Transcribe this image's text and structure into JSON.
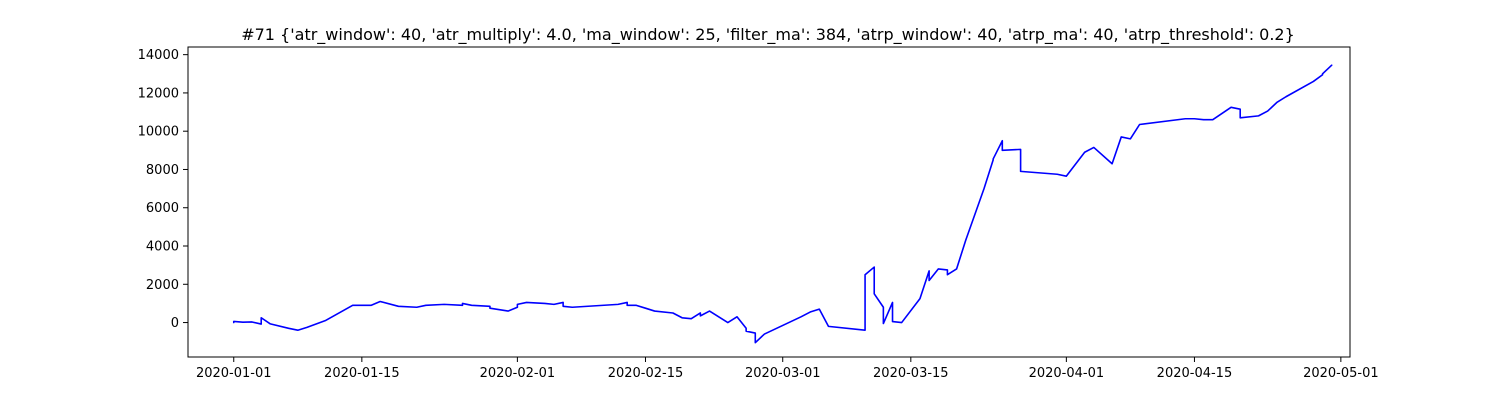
{
  "chart_data": {
    "type": "line",
    "title": "#71 {'atr_window': 40, 'atr_multiply': 4.0, 'ma_window': 25, 'filter_ma': 384, 'atrp_window': 40, 'atrp_ma': 40, 'atrp_threshold': 0.2}",
    "xlabel": "",
    "ylabel": "",
    "x_axis": "date",
    "xlim": [
      "2019-12-27",
      "2020-05-02"
    ],
    "ylim": [
      -1800,
      14400
    ],
    "xticks": [
      "2020-01-01",
      "2020-01-15",
      "2020-02-01",
      "2020-02-15",
      "2020-03-01",
      "2020-03-15",
      "2020-04-01",
      "2020-04-15",
      "2020-05-01"
    ],
    "yticks": [
      0,
      2000,
      4000,
      6000,
      8000,
      10000,
      12000,
      14000
    ],
    "grid": false,
    "line_color": "#0000ff",
    "series": [
      {
        "x": [
          "2020-01-01",
          "2020-01-01",
          "2020-01-02",
          "2020-01-03",
          "2020-01-04",
          "2020-01-04",
          "2020-01-05",
          "2020-01-07",
          "2020-01-08",
          "2020-01-09",
          "2020-01-11",
          "2020-01-14",
          "2020-01-15",
          "2020-01-16",
          "2020-01-17",
          "2020-01-19",
          "2020-01-21",
          "2020-01-22",
          "2020-01-24",
          "2020-01-26",
          "2020-01-26",
          "2020-01-27",
          "2020-01-29",
          "2020-01-29",
          "2020-01-31",
          "2020-02-01",
          "2020-02-01",
          "2020-02-02",
          "2020-02-04",
          "2020-02-05",
          "2020-02-06",
          "2020-02-06",
          "2020-02-07",
          "2020-02-12",
          "2020-02-13",
          "2020-02-13",
          "2020-02-14",
          "2020-02-15",
          "2020-02-16",
          "2020-02-18",
          "2020-02-19",
          "2020-02-20",
          "2020-02-21",
          "2020-02-21",
          "2020-02-22",
          "2020-02-24",
          "2020-02-25",
          "2020-02-26",
          "2020-02-26",
          "2020-02-27",
          "2020-02-27",
          "2020-02-28",
          "2020-03-03",
          "2020-03-04",
          "2020-03-05",
          "2020-03-06",
          "2020-03-10",
          "2020-03-10",
          "2020-03-11",
          "2020-03-11",
          "2020-03-12",
          "2020-03-12",
          "2020-03-13",
          "2020-03-13",
          "2020-03-14",
          "2020-03-16",
          "2020-03-17",
          "2020-03-17",
          "2020-03-18",
          "2020-03-19",
          "2020-03-19",
          "2020-03-20",
          "2020-03-21",
          "2020-03-23",
          "2020-03-24",
          "2020-03-24",
          "2020-03-25",
          "2020-03-25",
          "2020-03-25",
          "2020-03-27",
          "2020-03-27",
          "2020-03-31",
          "2020-04-01",
          "2020-04-03",
          "2020-04-04",
          "2020-04-06",
          "2020-04-07",
          "2020-04-08",
          "2020-04-09",
          "2020-04-14",
          "2020-04-15",
          "2020-04-16",
          "2020-04-17",
          "2020-04-19",
          "2020-04-20",
          "2020-04-20",
          "2020-04-22",
          "2020-04-23",
          "2020-04-24",
          "2020-04-25",
          "2020-04-28",
          "2020-04-29",
          "2020-04-29",
          "2020-04-30"
        ],
        "y": [
          0,
          60,
          20,
          30,
          -80,
          250,
          -70,
          -300,
          -400,
          -250,
          100,
          900,
          900,
          900,
          1100,
          850,
          800,
          900,
          950,
          900,
          1000,
          900,
          850,
          750,
          600,
          800,
          950,
          1050,
          1000,
          950,
          1050,
          850,
          800,
          950,
          1050,
          900,
          900,
          750,
          600,
          500,
          250,
          200,
          500,
          350,
          600,
          0,
          300,
          -300,
          -450,
          -550,
          -1050,
          -600,
          300,
          550,
          700,
          -200,
          -400,
          2500,
          2900,
          1500,
          800,
          -50,
          1050,
          50,
          0,
          1250,
          2700,
          2200,
          2800,
          2750,
          2500,
          2800,
          4300,
          7000,
          8500,
          8550,
          9500,
          9000,
          9000,
          9050,
          7900,
          7750,
          7650,
          8900,
          9150,
          8300,
          9700,
          9600,
          10350,
          10650,
          10650,
          10600,
          10600,
          11250,
          11150,
          10700,
          10800,
          11050,
          11500,
          11800,
          12600,
          12950,
          13000,
          13450
        ]
      }
    ]
  }
}
